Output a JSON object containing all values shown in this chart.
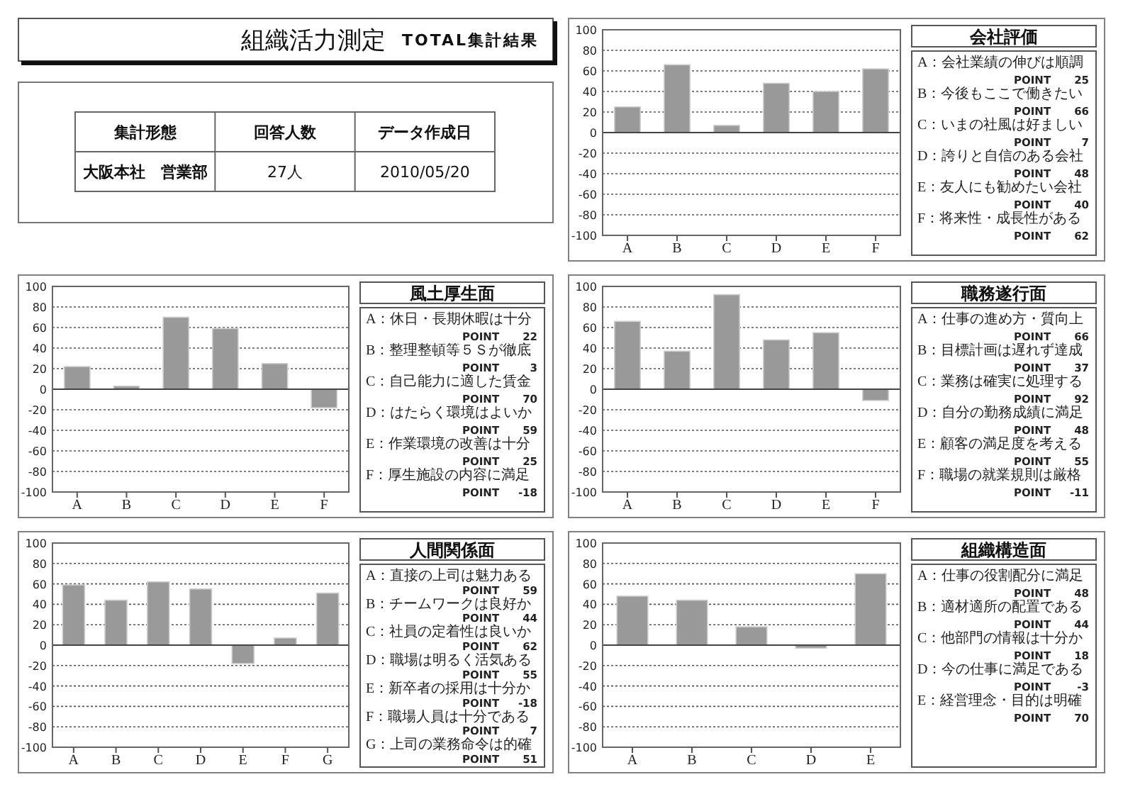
{
  "chart_data": [
    {
      "type": "other",
      "title": "組織活力測定",
      "subtitle": "TOTAL集計結果",
      "annotations": [
        "集計形態",
        "回答人数",
        "データ作成日",
        "大阪本社　営業部",
        "27人",
        "2010/05/20"
      ]
    },
    {
      "type": "bar",
      "categories": [
        "A",
        "B",
        "C",
        "D",
        "E",
        "F"
      ],
      "values": [
        25,
        66,
        7,
        48,
        40,
        62
      ],
      "color": "#999999",
      "ylim": [
        -100,
        100
      ],
      "yticks": [
        -100,
        -80,
        -60,
        -40,
        -20,
        0,
        20,
        40,
        60,
        80,
        100
      ],
      "grid": "y"
    },
    {
      "type": "other",
      "title": "会社評価",
      "annotations": [
        "A：会社業績の伸びは順調",
        "POINT 25",
        "B：今後もここで働きたい",
        "POINT 66",
        "C：いまの社風は好ましい",
        "POINT 7",
        "D：誇りと自信のある会社",
        "POINT 48",
        "E：友人にも勧めたい会社",
        "POINT 40",
        "F：将来性・成長性がある",
        "POINT 62"
      ]
    },
    {
      "type": "bar",
      "categories": [
        "A",
        "B",
        "C",
        "D",
        "E",
        "F"
      ],
      "values": [
        22,
        3,
        70,
        59,
        25,
        -18
      ],
      "color": "#999999",
      "ylim": [
        -100,
        100
      ],
      "yticks": [
        -100,
        -80,
        -60,
        -40,
        -20,
        0,
        20,
        40,
        60,
        80,
        100
      ],
      "grid": "y"
    },
    {
      "type": "other",
      "title": "風土厚生面",
      "annotations": [
        "A：休日・長期休暇は十分",
        "POINT 22",
        "B：整理整頓等５Ｓが徹底",
        "POINT 3",
        "C：自己能力に適した賃金",
        "POINT 70",
        "D：はたらく環境はよいか",
        "POINT 59",
        "E：作業環境の改善は十分",
        "POINT 25",
        "F：厚生施設の内容に満足",
        "POINT -18"
      ]
    },
    {
      "type": "bar",
      "categories": [
        "A",
        "B",
        "C",
        "D",
        "E",
        "F"
      ],
      "values": [
        66,
        37,
        92,
        48,
        55,
        -11
      ],
      "color": "#999999",
      "ylim": [
        -100,
        100
      ],
      "yticks": [
        -100,
        -80,
        -60,
        -40,
        -20,
        0,
        20,
        40,
        60,
        80,
        100
      ],
      "grid": "y"
    },
    {
      "type": "other",
      "title": "職務遂行面",
      "annotations": [
        "A：仕事の進め方・質向上",
        "POINT 66",
        "B：目標計画は遅れず達成",
        "POINT 37",
        "C：業務は確実に処理する",
        "POINT 92",
        "D：自分の勤務成績に満足",
        "POINT 48",
        "E：顧客の満足度を考える",
        "POINT 55",
        "F：職場の就業規則は厳格",
        "POINT -11"
      ]
    },
    {
      "type": "bar",
      "categories": [
        "A",
        "B",
        "C",
        "D",
        "E",
        "F",
        "G"
      ],
      "values": [
        59,
        44,
        62,
        55,
        -18,
        7,
        51
      ],
      "color": "#999999",
      "ylim": [
        -100,
        100
      ],
      "yticks": [
        -100,
        -80,
        -60,
        -40,
        -20,
        0,
        20,
        40,
        60,
        80,
        100
      ],
      "grid": "y"
    },
    {
      "type": "other",
      "title": "人間関係面",
      "annotations": [
        "A：直接の上司は魅力ある",
        "POINT 59",
        "B：チームワークは良好か",
        "POINT 44",
        "C：社員の定着性は良いか",
        "POINT 62",
        "D：職場は明るく活気ある",
        "POINT 55",
        "E：新卒者の採用は十分か",
        "POINT -18",
        "F：職場人員は十分である",
        "POINT 7",
        "G：上司の業務命令は的確",
        "POINT 51"
      ]
    },
    {
      "type": "bar",
      "categories": [
        "A",
        "B",
        "C",
        "D",
        "E"
      ],
      "values": [
        48,
        44,
        18,
        -3,
        70
      ],
      "color": "#999999",
      "ylim": [
        -100,
        100
      ],
      "yticks": [
        -100,
        -80,
        -60,
        -40,
        -20,
        0,
        20,
        40,
        60,
        80,
        100
      ],
      "grid": "y"
    },
    {
      "type": "other",
      "title": "組織構造面",
      "annotations": [
        "A：仕事の役割配分に満足",
        "POINT 48",
        "B：適材適所の配置である",
        "POINT 44",
        "C：他部門の情報は十分か",
        "POINT 18",
        "D：今の仕事に満足である",
        "POINT -3",
        "E：経営理念・目的は明確",
        "POINT 70"
      ]
    }
  ]
}
